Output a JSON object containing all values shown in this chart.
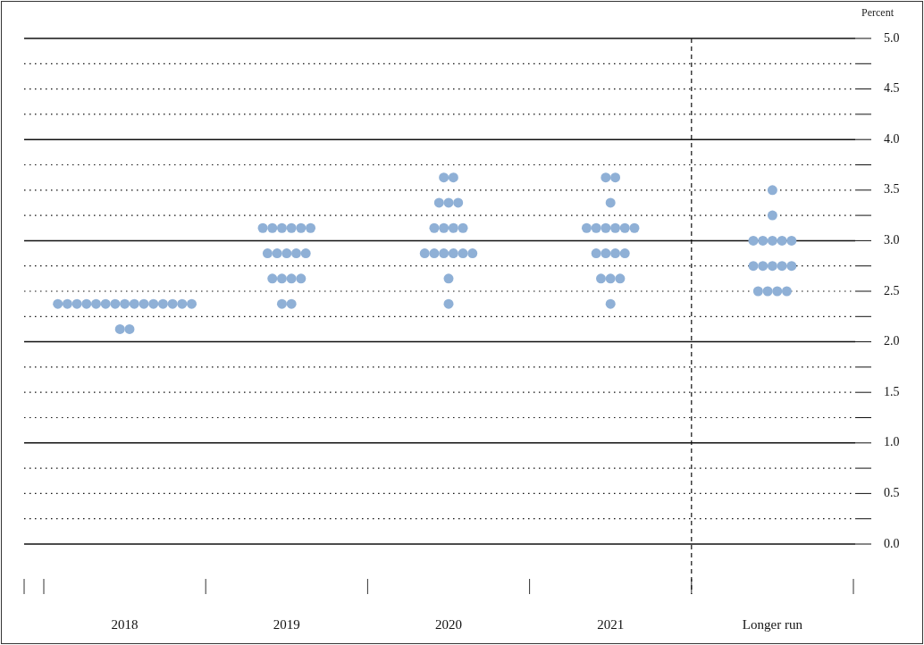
{
  "chart_data": {
    "type": "scatter",
    "ylabel": "Percent",
    "categories": [
      "2018",
      "2019",
      "2020",
      "2021",
      "Longer run"
    ],
    "series": [
      {
        "color": "#8fb0d6",
        "values": [
          2.375,
          3.125,
          3.625,
          3.625,
          3.5
        ]
      },
      {
        "color": "#8fb0d6",
        "values": [
          2.375,
          3.125,
          3.625,
          3.625,
          3.25
        ]
      },
      {
        "color": "#8fb0d6",
        "values": [
          2.375,
          3.125,
          3.375,
          3.375,
          3.0
        ]
      },
      {
        "color": "#8fb0d6",
        "values": [
          2.375,
          3.125,
          3.375,
          3.125,
          3.0
        ]
      },
      {
        "color": "#8fb0d6",
        "values": [
          2.375,
          3.125,
          3.375,
          3.125,
          3.0
        ]
      },
      {
        "color": "#8fb0d6",
        "values": [
          2.375,
          3.125,
          3.125,
          3.125,
          3.0
        ]
      },
      {
        "color": "#8fb0d6",
        "values": [
          2.375,
          2.875,
          3.125,
          3.125,
          3.0
        ]
      },
      {
        "color": "#8fb0d6",
        "values": [
          2.375,
          2.875,
          3.125,
          3.125,
          2.75
        ]
      },
      {
        "color": "#8fb0d6",
        "values": [
          2.375,
          2.875,
          3.125,
          3.125,
          2.75
        ]
      },
      {
        "color": "#8fb0d6",
        "values": [
          2.375,
          2.875,
          2.875,
          2.875,
          2.75
        ]
      },
      {
        "color": "#8fb0d6",
        "values": [
          2.375,
          2.875,
          2.875,
          2.875,
          2.75
        ]
      },
      {
        "color": "#8fb0d6",
        "values": [
          2.375,
          2.625,
          2.875,
          2.875,
          2.75
        ]
      },
      {
        "color": "#8fb0d6",
        "values": [
          2.375,
          2.625,
          2.875,
          2.875,
          2.5
        ]
      },
      {
        "color": "#8fb0d6",
        "values": [
          2.375,
          2.625,
          2.875,
          2.625,
          2.5
        ]
      },
      {
        "color": "#8fb0d6",
        "values": [
          2.375,
          2.625,
          2.875,
          2.625,
          2.5
        ]
      },
      {
        "color": "#8fb0d6",
        "values": [
          2.125,
          2.375,
          2.625,
          2.625,
          2.5
        ]
      },
      {
        "color": "#8fb0d6",
        "values": [
          2.125,
          2.375,
          2.375,
          2.375,
          null
        ]
      }
    ],
    "ylim": [
      0,
      5
    ],
    "yticks": [
      {
        "value": 0,
        "label": "0.0"
      },
      {
        "value": 0.25,
        "label": null
      },
      {
        "value": 0.5,
        "label": "0.5"
      },
      {
        "value": 0.75,
        "label": null
      },
      {
        "value": 1,
        "label": "1.0"
      },
      {
        "value": 1.25,
        "label": null
      },
      {
        "value": 1.5,
        "label": "1.5"
      },
      {
        "value": 1.75,
        "label": null
      },
      {
        "value": 2,
        "label": "2.0"
      },
      {
        "value": 2.25,
        "label": null
      },
      {
        "value": 2.5,
        "label": "2.5"
      },
      {
        "value": 2.75,
        "label": null
      },
      {
        "value": 3,
        "label": "3.0"
      },
      {
        "value": 3.25,
        "label": null
      },
      {
        "value": 3.5,
        "label": "3.5"
      },
      {
        "value": 3.75,
        "label": null
      },
      {
        "value": 4,
        "label": "4.0"
      },
      {
        "value": 4.25,
        "label": null
      },
      {
        "value": 4.5,
        "label": "4.5"
      },
      {
        "value": 4.75,
        "label": null
      },
      {
        "value": 5,
        "label": "5.0"
      }
    ],
    "grid": "y",
    "legend": false,
    "marker": "circle"
  }
}
